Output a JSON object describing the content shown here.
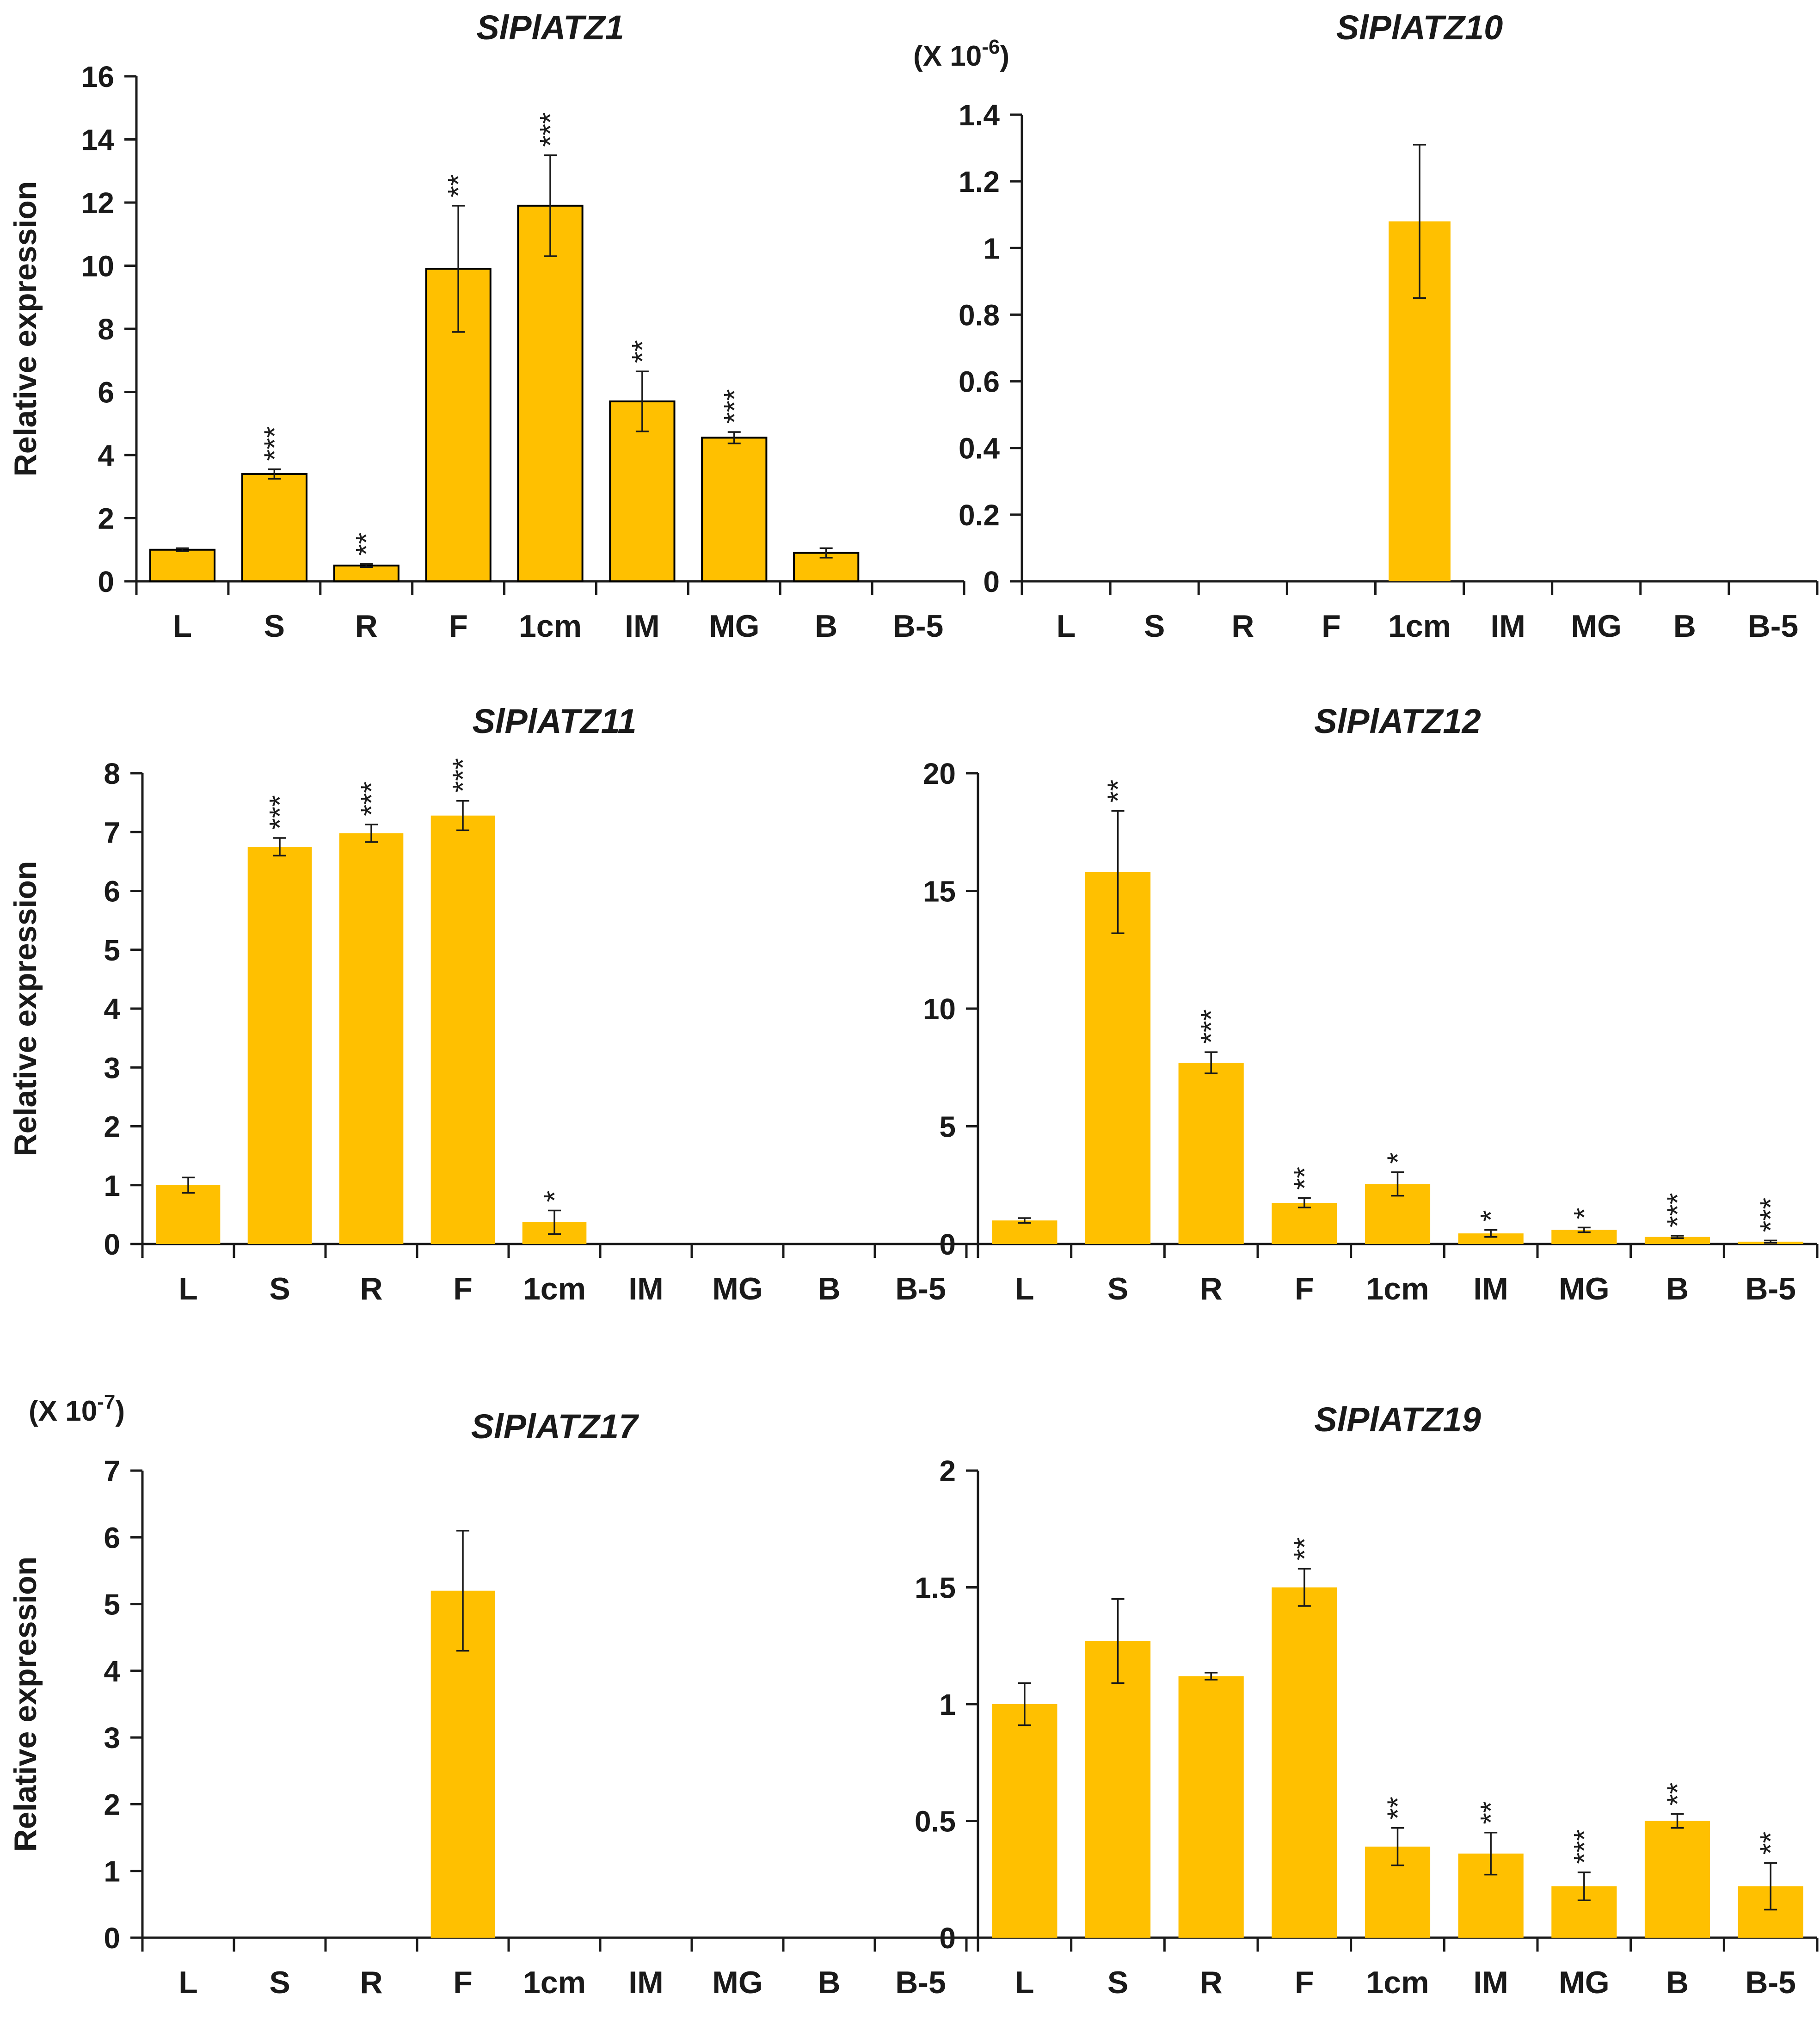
{
  "figure": {
    "categories": [
      "L",
      "S",
      "R",
      "F",
      "1cm",
      "IM",
      "MG",
      "B",
      "B-5"
    ],
    "bar_color": "#FFC000",
    "outline_color": "#000000",
    "y_axis_label": "Relative expression"
  },
  "chart_data": [
    {
      "type": "bar",
      "title": "SlPlATZ1",
      "xlabel": "",
      "ylabel": "Relative expression",
      "scale_note": "",
      "categories": [
        "L",
        "S",
        "R",
        "F",
        "1cm",
        "IM",
        "MG",
        "B",
        "B-5"
      ],
      "values": [
        1.0,
        3.4,
        0.5,
        9.9,
        11.9,
        5.7,
        4.55,
        0.9,
        0
      ],
      "errors": [
        0.05,
        0.15,
        0.05,
        2.0,
        1.6,
        0.95,
        0.18,
        0.15,
        0
      ],
      "significance": [
        "",
        "***",
        "**",
        "**",
        "***",
        "**",
        "***",
        "",
        ""
      ],
      "ylim": [
        0,
        16
      ],
      "yticks": [
        0,
        2,
        4,
        6,
        8,
        10,
        12,
        14,
        16
      ],
      "ytick_labels": [
        "0",
        "2",
        "4",
        "6",
        "8",
        "10",
        "12",
        "14",
        "16"
      ],
      "bar_outline": true
    },
    {
      "type": "bar",
      "title": "SlPlATZ10",
      "xlabel": "",
      "ylabel": "",
      "scale_note": "(X 10-6)",
      "categories": [
        "L",
        "S",
        "R",
        "F",
        "1cm",
        "IM",
        "MG",
        "B",
        "B-5"
      ],
      "values": [
        0,
        0,
        0,
        0,
        1.08,
        0,
        0,
        0,
        0
      ],
      "errors": [
        0,
        0,
        0,
        0,
        0.23,
        0,
        0,
        0,
        0
      ],
      "significance": [
        "",
        "",
        "",
        "",
        "",
        "",
        "",
        "",
        ""
      ],
      "ylim": [
        0,
        1.4
      ],
      "yticks": [
        0,
        0.2,
        0.4,
        0.6,
        0.8,
        1.0,
        1.2,
        1.4
      ],
      "ytick_labels": [
        "0",
        "0.2",
        "0.4",
        "0.6",
        "0.8",
        "1",
        "1.2",
        "1.4"
      ],
      "bar_outline": false
    },
    {
      "type": "bar",
      "title": "SlPlATZ11",
      "xlabel": "",
      "ylabel": "Relative expression",
      "scale_note": "",
      "categories": [
        "L",
        "S",
        "R",
        "F",
        "1cm",
        "IM",
        "MG",
        "B",
        "B-5"
      ],
      "values": [
        1.0,
        6.75,
        6.98,
        7.28,
        0.37,
        0,
        0,
        0,
        0
      ],
      "errors": [
        0.13,
        0.15,
        0.15,
        0.25,
        0.2,
        0,
        0,
        0,
        0
      ],
      "significance": [
        "",
        "***",
        "***",
        "***",
        "*",
        "",
        "",
        "",
        ""
      ],
      "ylim": [
        0,
        8
      ],
      "yticks": [
        0,
        1,
        2,
        3,
        4,
        5,
        6,
        7,
        8
      ],
      "ytick_labels": [
        "0",
        "1",
        "2",
        "3",
        "4",
        "5",
        "6",
        "7",
        "8"
      ],
      "bar_outline": false
    },
    {
      "type": "bar",
      "title": "SlPlATZ12",
      "xlabel": "",
      "ylabel": "",
      "scale_note": "",
      "categories": [
        "L",
        "S",
        "R",
        "F",
        "1cm",
        "IM",
        "MG",
        "B",
        "B-5"
      ],
      "values": [
        1.0,
        15.8,
        7.7,
        1.75,
        2.55,
        0.45,
        0.6,
        0.3,
        0.1
      ],
      "errors": [
        0.1,
        2.6,
        0.45,
        0.2,
        0.5,
        0.15,
        0.1,
        0.05,
        0.05
      ],
      "significance": [
        "",
        "**",
        "***",
        "**",
        "*",
        "*",
        "*",
        "***",
        "***"
      ],
      "ylim": [
        0,
        20
      ],
      "yticks": [
        0,
        5,
        10,
        15,
        20
      ],
      "ytick_labels": [
        "0",
        "5",
        "10",
        "15",
        "20"
      ],
      "bar_outline": false
    },
    {
      "type": "bar",
      "title": "SlPlATZ17",
      "xlabel": "",
      "ylabel": "Relative expression",
      "scale_note": "(X 10-7)",
      "categories": [
        "L",
        "S",
        "R",
        "F",
        "1cm",
        "IM",
        "MG",
        "B",
        "B-5"
      ],
      "values": [
        0,
        0,
        0,
        5.2,
        0,
        0,
        0,
        0,
        0
      ],
      "errors": [
        0,
        0,
        0,
        0.9,
        0,
        0,
        0,
        0,
        0
      ],
      "significance": [
        "",
        "",
        "",
        "",
        "",
        "",
        "",
        "",
        ""
      ],
      "ylim": [
        0,
        7
      ],
      "yticks": [
        0,
        1,
        2,
        3,
        4,
        5,
        6,
        7
      ],
      "ytick_labels": [
        "0",
        "1",
        "2",
        "3",
        "4",
        "5",
        "6",
        "7"
      ],
      "bar_outline": false
    },
    {
      "type": "bar",
      "title": "SlPlATZ19",
      "xlabel": "",
      "ylabel": "",
      "scale_note": "",
      "categories": [
        "L",
        "S",
        "R",
        "F",
        "1cm",
        "IM",
        "MG",
        "B",
        "B-5"
      ],
      "values": [
        1.0,
        1.27,
        1.12,
        1.5,
        0.39,
        0.36,
        0.22,
        0.5,
        0.22
      ],
      "errors": [
        0.09,
        0.18,
        0.015,
        0.08,
        0.08,
        0.09,
        0.06,
        0.03,
        0.1
      ],
      "significance": [
        "",
        "",
        "",
        "**",
        "**",
        "**",
        "***",
        "**",
        "**"
      ],
      "ylim": [
        0,
        2
      ],
      "yticks": [
        0,
        0.5,
        1.0,
        1.5,
        2.0
      ],
      "ytick_labels": [
        "0",
        "0.5",
        "1",
        "1.5",
        "2"
      ],
      "bar_outline": false
    }
  ]
}
